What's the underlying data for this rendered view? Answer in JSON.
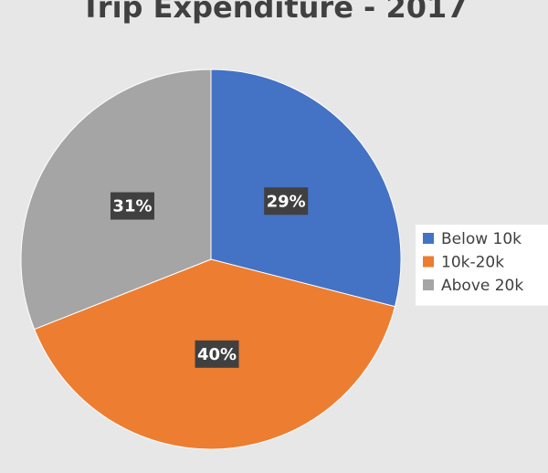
{
  "chart_data": {
    "type": "pie",
    "title": "Trip Expenditure - 2017",
    "categories": [
      "Below 10k",
      "10k-20k",
      "Above 20k"
    ],
    "values": [
      29,
      40,
      31
    ],
    "value_labels": [
      "29%",
      "40%",
      "31%"
    ],
    "colors": [
      "#4472c4",
      "#ed7d31",
      "#a5a5a5"
    ],
    "legend": "right"
  }
}
